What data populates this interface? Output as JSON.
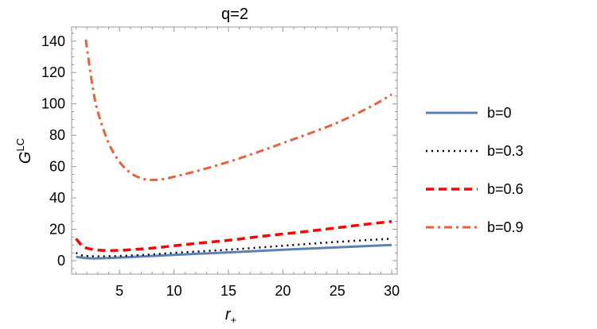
{
  "chart_data": {
    "type": "line",
    "title": "q=2",
    "xlabel": "r",
    "xlabel_sub": "+",
    "ylabel": "G",
    "ylabel_sup": "LC",
    "xlim": [
      0.6,
      30.5
    ],
    "ylim": [
      -8.6,
      149
    ],
    "xticks": [
      5,
      10,
      15,
      20,
      25,
      30
    ],
    "yticks": [
      0,
      20,
      40,
      60,
      80,
      100,
      120,
      140
    ],
    "grid": false,
    "legend_position": "right",
    "series": [
      {
        "name": "b=0",
        "color": "#5E81B5",
        "style": "solid",
        "x": [
          1,
          2,
          3,
          5,
          8,
          10,
          15,
          20,
          25,
          30
        ],
        "y": [
          2.5,
          1.6,
          1.5,
          2,
          3,
          3.7,
          5.3,
          7,
          8.5,
          10
        ]
      },
      {
        "name": "b=0.3",
        "color": "#000000",
        "style": "dotted",
        "x": [
          1,
          1.5,
          2,
          3,
          5,
          8,
          10,
          15,
          20,
          25,
          30
        ],
        "y": [
          5,
          3.5,
          3,
          2.8,
          3,
          4,
          5,
          7,
          9.5,
          12,
          14
        ]
      },
      {
        "name": "b=0.6",
        "color": "#FF0000",
        "style": "dashed",
        "x": [
          1,
          1.5,
          2,
          3,
          4,
          5,
          6,
          8,
          10,
          12,
          15,
          18,
          20,
          22,
          25,
          28,
          30
        ],
        "y": [
          14,
          10,
          8,
          6.8,
          6.5,
          6.6,
          7,
          8,
          9.5,
          11,
          13,
          15.5,
          17,
          18.5,
          21,
          23.5,
          25
        ]
      },
      {
        "name": "b=0.9",
        "color": "#E8613A",
        "style": "dashdot",
        "x": [
          1.9,
          2.5,
          3,
          4,
          5,
          6,
          7,
          8,
          9,
          10,
          12,
          15,
          18,
          20,
          22,
          25,
          28,
          30
        ],
        "y": [
          141,
          112,
          95,
          75,
          63,
          56,
          52.5,
          51.5,
          52,
          53.5,
          57,
          63,
          70,
          75,
          80,
          88,
          98,
          106
        ]
      }
    ]
  }
}
